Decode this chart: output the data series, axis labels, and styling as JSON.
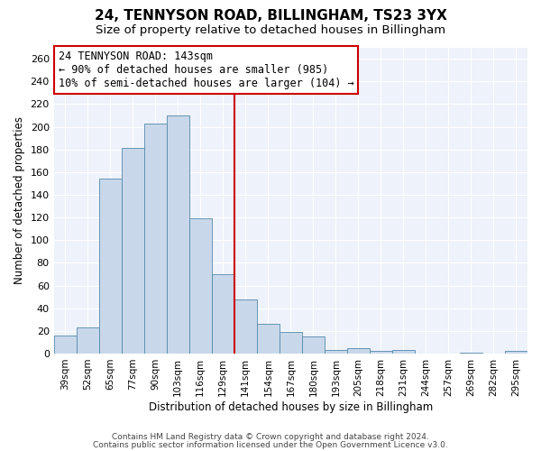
{
  "title": "24, TENNYSON ROAD, BILLINGHAM, TS23 3YX",
  "subtitle": "Size of property relative to detached houses in Billingham",
  "xlabel": "Distribution of detached houses by size in Billingham",
  "ylabel": "Number of detached properties",
  "bar_labels": [
    "39sqm",
    "52sqm",
    "65sqm",
    "77sqm",
    "90sqm",
    "103sqm",
    "116sqm",
    "129sqm",
    "141sqm",
    "154sqm",
    "167sqm",
    "180sqm",
    "193sqm",
    "205sqm",
    "218sqm",
    "231sqm",
    "244sqm",
    "257sqm",
    "269sqm",
    "282sqm",
    "295sqm"
  ],
  "bar_values": [
    16,
    23,
    154,
    181,
    203,
    210,
    119,
    70,
    48,
    26,
    19,
    15,
    3,
    5,
    2,
    3,
    0,
    0,
    1,
    0,
    2
  ],
  "bar_color": "#c8d8ea",
  "bar_edge_color": "#5588aa",
  "vline_x": 8.0,
  "vline_color": "#cc0000",
  "ylim": [
    0,
    270
  ],
  "yticks": [
    0,
    20,
    40,
    60,
    80,
    100,
    120,
    140,
    160,
    180,
    200,
    220,
    240,
    260
  ],
  "annotation_title": "24 TENNYSON ROAD: 143sqm",
  "annotation_line1": "← 90% of detached houses are smaller (985)",
  "annotation_line2": "10% of semi-detached houses are larger (104) →",
  "annotation_box_color": "#ffffff",
  "annotation_box_edge_color": "#cc0000",
  "footer1": "Contains HM Land Registry data © Crown copyright and database right 2024.",
  "footer2": "Contains public sector information licensed under the Open Government Licence v3.0.",
  "bg_color": "#eef2fa",
  "title_fontsize": 11,
  "subtitle_fontsize": 9.5,
  "grid_color": "#ffffff"
}
